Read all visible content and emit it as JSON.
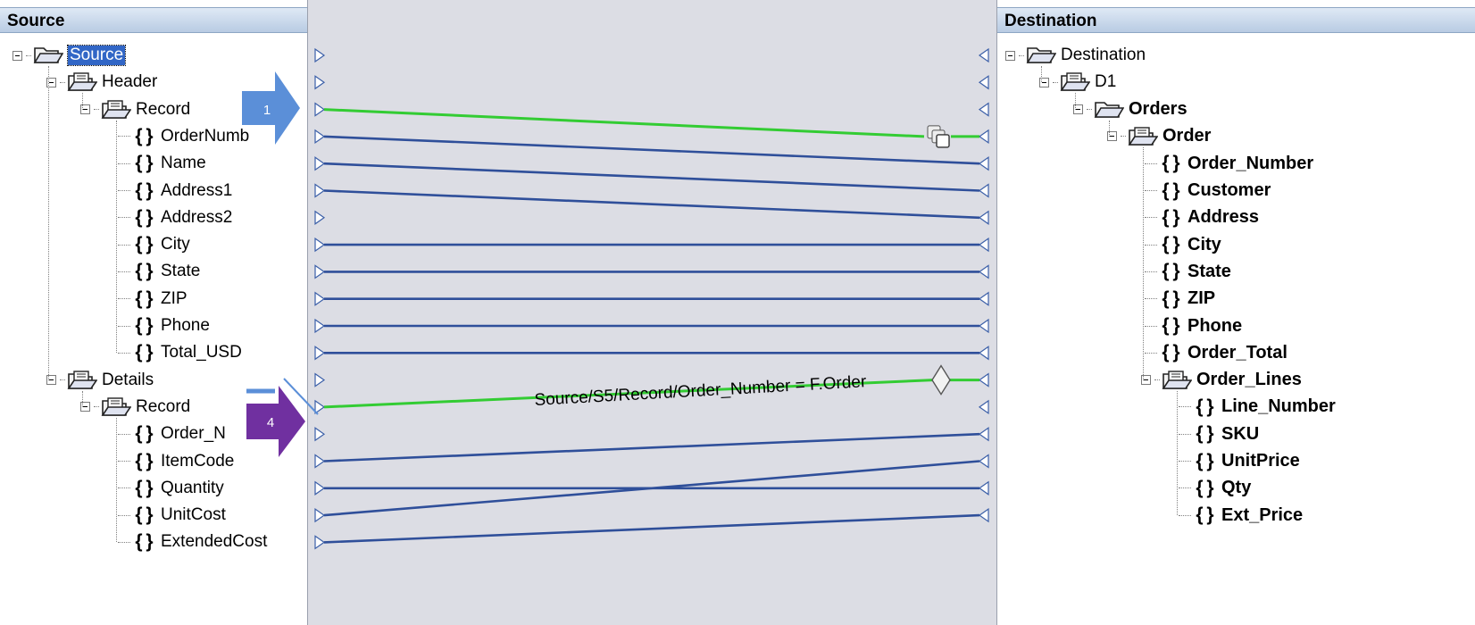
{
  "source": {
    "header": "Source",
    "tree": [
      {
        "label": "Source",
        "kind": "open-folder",
        "depth": 0,
        "selected": true
      },
      {
        "label": "Header",
        "kind": "record-folder",
        "depth": 1
      },
      {
        "label": "Record",
        "kind": "record-folder",
        "depth": 2
      },
      {
        "label": "OrderNumb",
        "kind": "field",
        "depth": 3
      },
      {
        "label": "Name",
        "kind": "field",
        "depth": 3
      },
      {
        "label": "Address1",
        "kind": "field",
        "depth": 3
      },
      {
        "label": "Address2",
        "kind": "field",
        "depth": 3
      },
      {
        "label": "City",
        "kind": "field",
        "depth": 3
      },
      {
        "label": "State",
        "kind": "field",
        "depth": 3
      },
      {
        "label": "ZIP",
        "kind": "field",
        "depth": 3
      },
      {
        "label": "Phone",
        "kind": "field",
        "depth": 3
      },
      {
        "label": "Total_USD",
        "kind": "field",
        "depth": 3
      },
      {
        "label": "Details",
        "kind": "record-folder",
        "depth": 1
      },
      {
        "label": "Record",
        "kind": "record-folder",
        "depth": 2
      },
      {
        "label": "Order_N",
        "kind": "field",
        "depth": 3
      },
      {
        "label": "ItemCode",
        "kind": "field",
        "depth": 3
      },
      {
        "label": "Quantity",
        "kind": "field",
        "depth": 3
      },
      {
        "label": "UnitCost",
        "kind": "field",
        "depth": 3
      },
      {
        "label": "ExtendedCost",
        "kind": "field",
        "depth": 3
      }
    ]
  },
  "destination": {
    "header": "Destination",
    "tree": [
      {
        "label": "Destination",
        "kind": "open-folder",
        "depth": 0
      },
      {
        "label": "D1",
        "kind": "record-folder",
        "depth": 1
      },
      {
        "label": "Orders",
        "kind": "open-folder",
        "depth": 2,
        "bold": true
      },
      {
        "label": "Order",
        "kind": "record-folder",
        "depth": 3,
        "bold": true
      },
      {
        "label": "Order_Number",
        "kind": "field",
        "depth": 4,
        "bold": true
      },
      {
        "label": "Customer",
        "kind": "field",
        "depth": 4,
        "bold": true
      },
      {
        "label": "Address",
        "kind": "field",
        "depth": 4,
        "bold": true
      },
      {
        "label": "City",
        "kind": "field",
        "depth": 4,
        "bold": true
      },
      {
        "label": "State",
        "kind": "field",
        "depth": 4,
        "bold": true
      },
      {
        "label": "ZIP",
        "kind": "field",
        "depth": 4,
        "bold": true
      },
      {
        "label": "Phone",
        "kind": "field",
        "depth": 4,
        "bold": true
      },
      {
        "label": "Order_Total",
        "kind": "field",
        "depth": 4,
        "bold": true
      },
      {
        "label": "Order_Lines",
        "kind": "record-folder",
        "depth": 4,
        "bold": true
      },
      {
        "label": "Line_Number",
        "kind": "field",
        "depth": 5,
        "bold": true
      },
      {
        "label": "SKU",
        "kind": "field",
        "depth": 5,
        "bold": true
      },
      {
        "label": "UnitPrice",
        "kind": "field",
        "depth": 5,
        "bold": true
      },
      {
        "label": "Qty",
        "kind": "field",
        "depth": 5,
        "bold": true
      },
      {
        "label": "Ext_Price",
        "kind": "field",
        "depth": 5,
        "bold": true
      }
    ]
  },
  "mapping": {
    "links": [
      {
        "from": 2,
        "to": 3,
        "kind": "loop",
        "color": "#33cc33",
        "icon": "copy-icon"
      },
      {
        "from": 3,
        "to": 4,
        "color": "#2f4f9a"
      },
      {
        "from": 4,
        "to": 5,
        "color": "#2f4f9a"
      },
      {
        "from": 5,
        "to": 6,
        "color": "#2f4f9a"
      },
      {
        "from": 7,
        "to": 7,
        "color": "#2f4f9a"
      },
      {
        "from": 8,
        "to": 8,
        "color": "#2f4f9a"
      },
      {
        "from": 9,
        "to": 9,
        "color": "#2f4f9a"
      },
      {
        "from": 10,
        "to": 10,
        "color": "#2f4f9a"
      },
      {
        "from": 11,
        "to": 11,
        "color": "#2f4f9a"
      },
      {
        "from": 13,
        "to": 12,
        "kind": "condition",
        "color": "#33cc33",
        "icon": "condition-diamond-icon"
      },
      {
        "from": 15,
        "to": 14,
        "color": "#2f4f9a"
      },
      {
        "from": 16,
        "to": 16,
        "color": "#2f4f9a"
      },
      {
        "from": 17,
        "to": 15,
        "color": "#2f4f9a"
      },
      {
        "from": 18,
        "to": 17,
        "color": "#2f4f9a"
      }
    ],
    "condition_label": "Source/S5/Record/Order_Number = F.Order"
  },
  "callouts": [
    {
      "label": "1",
      "color": "#5b8fd8"
    },
    {
      "label": "4",
      "color": "#7030a0"
    }
  ]
}
